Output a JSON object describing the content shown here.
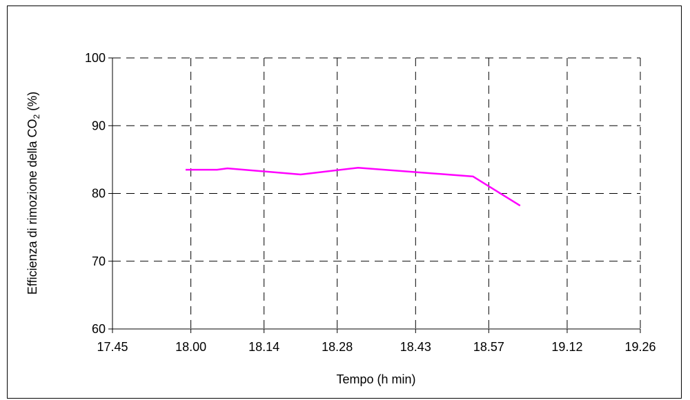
{
  "chart_data": {
    "type": "line",
    "title": "",
    "xlabel": "Tempo (h min)",
    "ylabel": {
      "text": "Efficienza di rimozione della CO",
      "subscript": "2",
      "suffix": " (%)"
    },
    "x_ticks": [
      "17.45",
      "18.00",
      "18.14",
      "18.28",
      "18.43",
      "18.57",
      "19.12",
      "19.26"
    ],
    "x_tick_minutes": [
      1065,
      1080,
      1094,
      1108,
      1123,
      1137,
      1152,
      1166
    ],
    "xlim_minutes": [
      1065,
      1166
    ],
    "y_ticks": [
      "60",
      "70",
      "80",
      "90",
      "100"
    ],
    "ylim": [
      60,
      100
    ],
    "grid": true,
    "line_color": "#ff00ff",
    "series": [
      {
        "name": "",
        "x_minutes": [
          1079,
          1085,
          1087,
          1101,
          1112,
          1134,
          1143
        ],
        "values": [
          83.5,
          83.5,
          83.7,
          82.8,
          83.8,
          82.5,
          78.2
        ]
      }
    ]
  }
}
